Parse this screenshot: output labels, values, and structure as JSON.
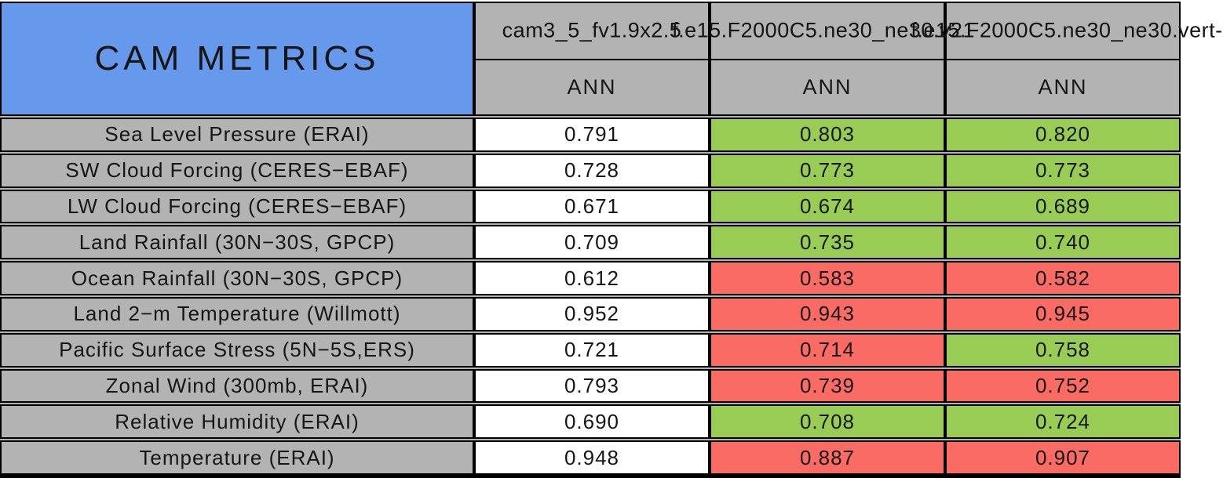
{
  "table": {
    "title": "CAM METRICS",
    "columns": [
      {
        "run": "cam3_5_fv1.9x2.5",
        "season": "ANN"
      },
      {
        "run": "f.e15.F2000C5.ne30_ne30.v21",
        "season": "ANN"
      },
      {
        "run": "f.e15.F2000C5.ne30_ne30.vert-",
        "season": "ANN"
      }
    ],
    "rows": [
      {
        "metric": "Sea Level Pressure (ERAI)",
        "values": [
          "0.791",
          "0.803",
          "0.820"
        ],
        "colors": [
          "white",
          "green",
          "green"
        ]
      },
      {
        "metric": "SW Cloud Forcing (CERES−EBAF)",
        "values": [
          "0.728",
          "0.773",
          "0.773"
        ],
        "colors": [
          "white",
          "green",
          "green"
        ]
      },
      {
        "metric": "LW Cloud Forcing (CERES−EBAF)",
        "values": [
          "0.671",
          "0.674",
          "0.689"
        ],
        "colors": [
          "white",
          "green",
          "green"
        ]
      },
      {
        "metric": "Land Rainfall (30N−30S, GPCP)",
        "values": [
          "0.709",
          "0.735",
          "0.740"
        ],
        "colors": [
          "white",
          "green",
          "green"
        ]
      },
      {
        "metric": "Ocean Rainfall (30N−30S, GPCP)",
        "values": [
          "0.612",
          "0.583",
          "0.582"
        ],
        "colors": [
          "white",
          "red",
          "red"
        ]
      },
      {
        "metric": "Land 2−m Temperature (Willmott)",
        "values": [
          "0.952",
          "0.943",
          "0.945"
        ],
        "colors": [
          "white",
          "red",
          "red"
        ]
      },
      {
        "metric": "Pacific Surface Stress (5N−5S,ERS)",
        "values": [
          "0.721",
          "0.714",
          "0.758"
        ],
        "colors": [
          "white",
          "red",
          "green"
        ]
      },
      {
        "metric": "Zonal Wind (300mb, ERAI)",
        "values": [
          "0.793",
          "0.739",
          "0.752"
        ],
        "colors": [
          "white",
          "red",
          "red"
        ]
      },
      {
        "metric": "Relative Humidity (ERAI)",
        "values": [
          "0.690",
          "0.708",
          "0.724"
        ],
        "colors": [
          "white",
          "green",
          "green"
        ]
      },
      {
        "metric": "Temperature (ERAI)",
        "values": [
          "0.948",
          "0.887",
          "0.907"
        ],
        "colors": [
          "white",
          "red",
          "red"
        ]
      }
    ],
    "colors": {
      "title_blue": "#6699EB",
      "header_gray": "#B3B3B3",
      "better_green": "#99CC55",
      "worse_red": "#FA6B64",
      "control_white": "#FFFFFF"
    }
  },
  "chart_data": {
    "type": "table",
    "title": "CAM METRICS",
    "row_labels": [
      "Sea Level Pressure (ERAI)",
      "SW Cloud Forcing (CERES−EBAF)",
      "LW Cloud Forcing (CERES−EBAF)",
      "Land Rainfall (30N−30S, GPCP)",
      "Ocean Rainfall (30N−30S, GPCP)",
      "Land 2−m Temperature (Willmott)",
      "Pacific Surface Stress (5N−5S,ERS)",
      "Zonal Wind (300mb, ERAI)",
      "Relative Humidity (ERAI)",
      "Temperature (ERAI)"
    ],
    "column_subheader": "ANN",
    "series": [
      {
        "name": "cam3_5_fv1.9x2.5",
        "values": [
          0.791,
          0.728,
          0.671,
          0.709,
          0.612,
          0.952,
          0.721,
          0.793,
          0.69,
          0.948
        ],
        "cell_colors": [
          "white",
          "white",
          "white",
          "white",
          "white",
          "white",
          "white",
          "white",
          "white",
          "white"
        ]
      },
      {
        "name": "f.e15.F2000C5.ne30_ne30.v21",
        "values": [
          0.803,
          0.773,
          0.674,
          0.735,
          0.583,
          0.943,
          0.714,
          0.739,
          0.708,
          0.887
        ],
        "cell_colors": [
          "green",
          "green",
          "green",
          "green",
          "red",
          "red",
          "red",
          "red",
          "green",
          "red"
        ]
      },
      {
        "name": "f.e15.F2000C5.ne30_ne30.vert-",
        "values": [
          0.82,
          0.773,
          0.689,
          0.74,
          0.582,
          0.945,
          0.758,
          0.752,
          0.724,
          0.907
        ],
        "cell_colors": [
          "green",
          "green",
          "green",
          "green",
          "red",
          "red",
          "green",
          "red",
          "green",
          "red"
        ]
      }
    ]
  }
}
